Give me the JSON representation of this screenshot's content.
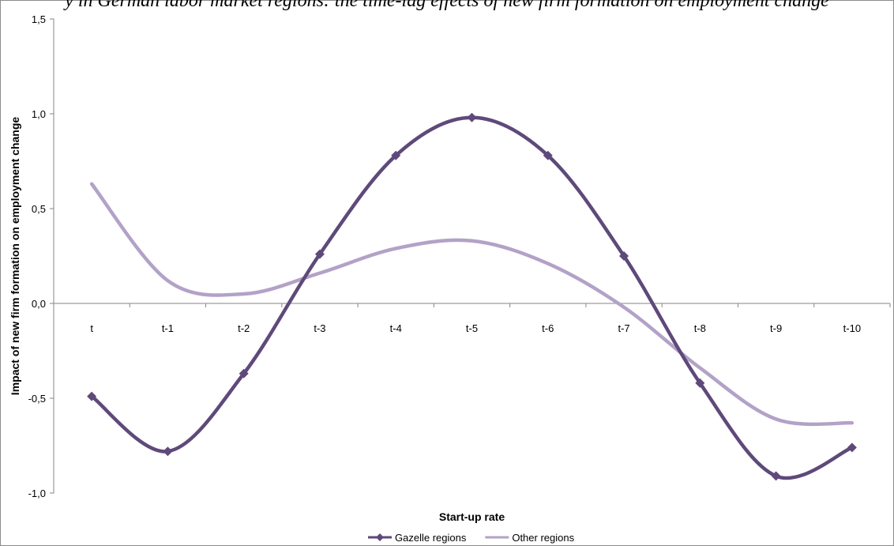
{
  "chart_data": {
    "type": "line",
    "title": "y in German labor market regions: the time-lag effects of new firm formation on employment change",
    "xlabel": "Start-up rate",
    "ylabel": "Impact of new firm formation on employment change",
    "categories": [
      "t",
      "t-1",
      "t-2",
      "t-3",
      "t-4",
      "t-5",
      "t-6",
      "t-7",
      "t-8",
      "t-9",
      "t-10"
    ],
    "yticks": [
      "-1,0",
      "-0,5",
      "0,0",
      "0,5",
      "1,0",
      "1,5"
    ],
    "ylim": [
      -1.0,
      1.5
    ],
    "grid": false,
    "legend_position": "bottom",
    "series": [
      {
        "name": "Gazelle regions",
        "color": "#5f497a",
        "marker": "diamond",
        "values": [
          -0.49,
          -0.78,
          -0.37,
          0.26,
          0.78,
          0.98,
          0.78,
          0.25,
          -0.42,
          -0.91,
          -0.76
        ]
      },
      {
        "name": "Other regions",
        "color": "#b3a2c7",
        "marker": "none",
        "values": [
          0.63,
          0.12,
          0.05,
          0.16,
          0.29,
          0.33,
          0.21,
          -0.02,
          -0.34,
          -0.61,
          -0.63
        ]
      }
    ]
  }
}
